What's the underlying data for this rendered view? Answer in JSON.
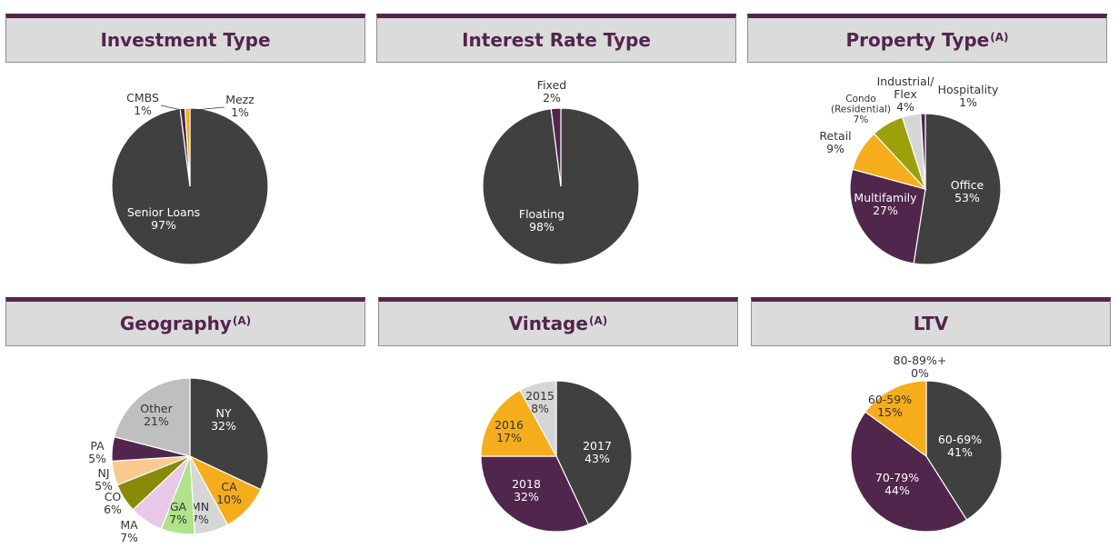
{
  "colors": {
    "dark_gray": "#404041",
    "purple": "#51264c",
    "orange": "#f6ad1b",
    "olive": "#9ba00b",
    "light_gray": "#d6d6d6",
    "light_green": "#b0e38a",
    "pink": "#e7c8e6",
    "peach": "#f9c98f",
    "mid_gray": "#bfbfbf",
    "header_bg": "#dcdbdc"
  },
  "chart_data": [
    {
      "type": "pie",
      "title": "Investment Type",
      "title_sup": "",
      "slices": [
        {
          "label": "Senior Loans",
          "pct_label": "97%",
          "value": 97,
          "color": "#404041"
        },
        {
          "label": "CMBS",
          "pct_label": "1%",
          "value": 1,
          "color": "#51264c"
        },
        {
          "label": "Mezz",
          "pct_label": "1%",
          "value": 1,
          "color": "#f6ad1b"
        }
      ]
    },
    {
      "type": "pie",
      "title": "Interest Rate Type",
      "title_sup": "",
      "slices": [
        {
          "label": "Floating",
          "pct_label": "98%",
          "value": 98,
          "color": "#404041"
        },
        {
          "label": "Fixed",
          "pct_label": "2%",
          "value": 2,
          "color": "#51264c"
        }
      ]
    },
    {
      "type": "pie",
      "title": "Property Type",
      "title_sup": "(A)",
      "slices": [
        {
          "label": "Office",
          "pct_label": "53%",
          "value": 53,
          "color": "#404041"
        },
        {
          "label": "Multifamily",
          "pct_label": "27%",
          "value": 27,
          "color": "#51264c"
        },
        {
          "label": "Retail",
          "pct_label": "9%",
          "value": 9,
          "color": "#f6ad1b"
        },
        {
          "label": "Condo (Residential)",
          "label_lines": [
            "Condo",
            "(Residential)"
          ],
          "pct_label": "7%",
          "value": 7,
          "color": "#9ba00b"
        },
        {
          "label": "Industrial/ Flex",
          "label_lines": [
            "Industrial/",
            "Flex"
          ],
          "pct_label": "4%",
          "value": 4,
          "color": "#d6d6d6"
        },
        {
          "label": "Hospitality",
          "pct_label": "1%",
          "value": 1,
          "color": "#51264c"
        }
      ]
    },
    {
      "type": "pie",
      "title": "Geography",
      "title_sup": "(A)",
      "slices": [
        {
          "label": "NY",
          "pct_label": "32%",
          "value": 32,
          "color": "#404041"
        },
        {
          "label": "CA",
          "pct_label": "10%",
          "value": 10,
          "color": "#f6ad1b"
        },
        {
          "label": "MN",
          "pct_label": "7%",
          "value": 7,
          "color": "#d6d6d6"
        },
        {
          "label": "GA",
          "pct_label": "7%",
          "value": 7,
          "color": "#b0e38a"
        },
        {
          "label": "MA",
          "pct_label": "7%",
          "value": 7,
          "color": "#e7c8e6"
        },
        {
          "label": "CO",
          "pct_label": "6%",
          "value": 6,
          "color": "#8a8a0a"
        },
        {
          "label": "NJ",
          "pct_label": "5%",
          "value": 5,
          "color": "#f9c98f"
        },
        {
          "label": "PA",
          "pct_label": "5%",
          "value": 5,
          "color": "#51264c"
        },
        {
          "label": "Other",
          "pct_label": "21%",
          "value": 21,
          "color": "#bfbfbf"
        }
      ]
    },
    {
      "type": "pie",
      "title": "Vintage",
      "title_sup": "(A)",
      "slices": [
        {
          "label": "2017",
          "pct_label": "43%",
          "value": 43,
          "color": "#404041"
        },
        {
          "label": "2018",
          "pct_label": "32%",
          "value": 32,
          "color": "#51264c"
        },
        {
          "label": "2016",
          "pct_label": "17%",
          "value": 17,
          "color": "#f6ad1b"
        },
        {
          "label": "2015",
          "pct_label": "8%",
          "value": 8,
          "color": "#d6d6d6"
        }
      ]
    },
    {
      "type": "pie",
      "title": "LTV",
      "title_sup": "",
      "slices": [
        {
          "label": "60-69%",
          "pct_label": "41%",
          "value": 41,
          "color": "#404041"
        },
        {
          "label": "70-79%",
          "pct_label": "44%",
          "value": 44,
          "color": "#51264c"
        },
        {
          "label": "60-59%",
          "pct_label": "15%",
          "value": 15,
          "color": "#f6ad1b"
        },
        {
          "label": "80-89%+",
          "pct_label": "0%",
          "value": 0,
          "color": "#d6d6d6"
        }
      ]
    }
  ]
}
